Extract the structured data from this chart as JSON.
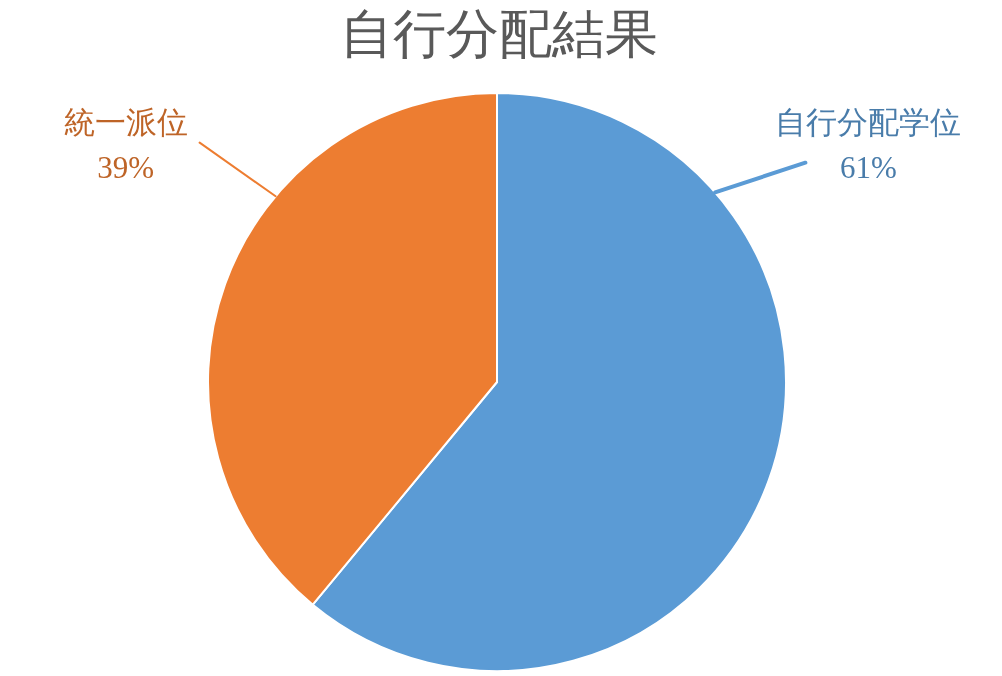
{
  "chart_data": {
    "type": "pie",
    "title": "自行分配結果",
    "categories": [
      "自行分配学位",
      "統一派位"
    ],
    "values": [
      61,
      39
    ],
    "colors": [
      "#5b9bd5",
      "#ed7d31"
    ],
    "value_labels": [
      "61%",
      "39%"
    ]
  }
}
